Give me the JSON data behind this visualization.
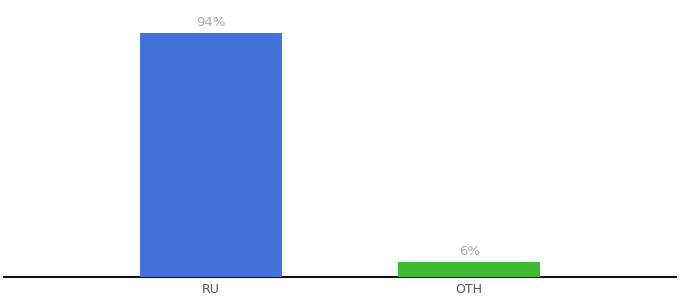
{
  "categories": [
    "RU",
    "OTH"
  ],
  "values": [
    94,
    6
  ],
  "bar_colors": [
    "#4472db",
    "#3dbb35"
  ],
  "bar_labels": [
    "94%",
    "6%"
  ],
  "background_color": "#ffffff",
  "label_color": "#aaaaaa",
  "label_fontsize": 9.5,
  "tick_fontsize": 9,
  "tick_color": "#555555",
  "ylim": [
    0,
    105
  ],
  "bar_width": 0.55,
  "figsize": [
    6.8,
    3.0
  ],
  "dpi": 100,
  "xlim": [
    -0.8,
    1.8
  ]
}
